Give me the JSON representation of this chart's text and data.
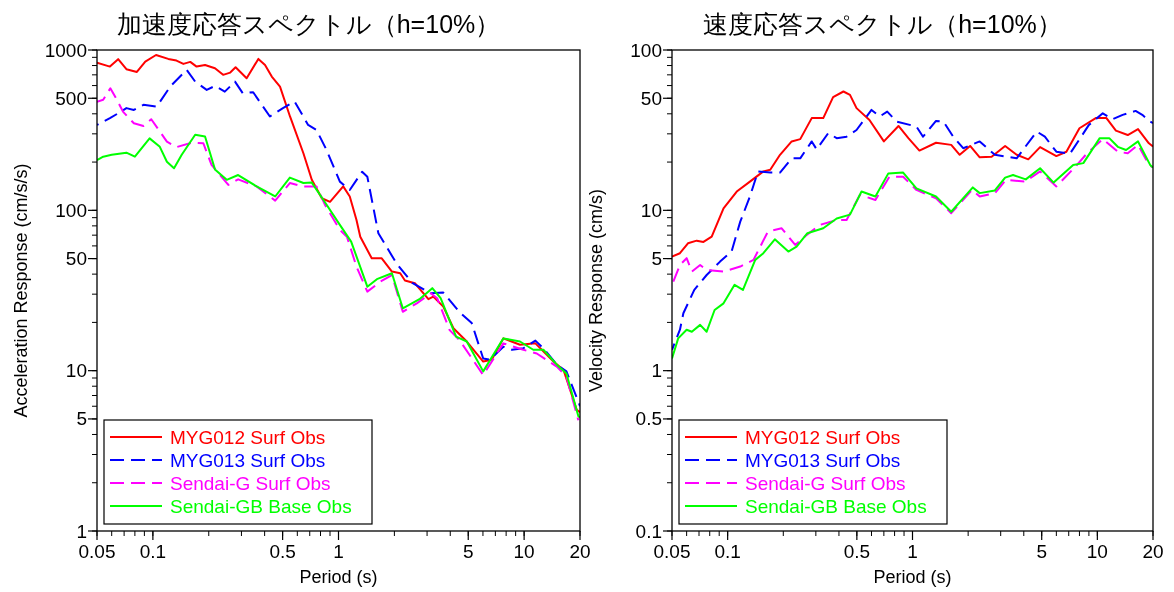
{
  "chart_data": [
    {
      "type": "line",
      "title": "加速度応答スペクトル（h=10%）",
      "xlabel": "Period (s)",
      "ylabel": "Acceleration Response (cm/s/s)",
      "log": "xy",
      "xlim": [
        0.05,
        20
      ],
      "ylim": [
        1,
        1000
      ],
      "xticks": [
        0.05,
        0.1,
        0.5,
        1,
        5,
        10,
        20
      ],
      "yticks": [
        1,
        5,
        10,
        50,
        100,
        500,
        1000
      ],
      "legend": "bottom left",
      "series": [
        {
          "name": "MYG012 Surf Obs",
          "color": "#ff0000",
          "line_style": "solid",
          "x": [
            0.05,
            0.0587,
            0.065,
            0.072,
            0.082,
            0.091,
            0.104,
            0.121,
            0.134,
            0.146,
            0.159,
            0.172,
            0.191,
            0.216,
            0.239,
            0.261,
            0.279,
            0.32,
            0.37,
            0.402,
            0.437,
            0.484,
            0.548,
            0.647,
            0.718,
            0.813,
            0.9,
            1.06,
            1.15,
            1.25,
            1.31,
            1.51,
            1.71,
            1.94,
            2.15,
            2.28,
            2.58,
            3.05,
            3.24,
            3.67,
            4.16,
            4.91,
            6.02,
            6.69,
            7.73,
            9.5,
            11.5,
            14.4,
            16.3,
            19.2,
            20
          ],
          "values": [
            834,
            788,
            877,
            759,
            730,
            847,
            931,
            880,
            859,
            819,
            843,
            788,
            807,
            770,
            700,
            723,
            781,
            667,
            880,
            807,
            683,
            591,
            385,
            227,
            155,
            119,
            113,
            141,
            122,
            87,
            68.5,
            50.2,
            50.2,
            41.5,
            40.5,
            36.5,
            35.1,
            27.9,
            29,
            25.1,
            18.4,
            15.2,
            11.4,
            11.7,
            15.9,
            14.5,
            14.8,
            11.4,
            10.1,
            5.7,
            5.5
          ]
        },
        {
          "name": "MYG013 Surf Obs",
          "color": "#0000ff",
          "line_style": "dashed",
          "x": [
            0.05,
            0.0587,
            0.066,
            0.072,
            0.079,
            0.089,
            0.105,
            0.124,
            0.152,
            0.169,
            0.195,
            0.216,
            0.244,
            0.277,
            0.305,
            0.347,
            0.427,
            0.502,
            0.58,
            0.686,
            0.761,
            0.862,
            1.017,
            1.15,
            1.34,
            1.43,
            1.64,
            2.05,
            2.19,
            2.51,
            3.14,
            3.67,
            4.47,
            5.22,
            6.02,
            6.55,
            7.73,
            8.6,
            9.9,
            11.5,
            12.7,
            15,
            16.9,
            19.7,
            20
          ],
          "values": [
            341,
            376,
            407,
            434,
            423,
            455,
            444,
            591,
            752,
            635,
            564,
            597,
            550,
            635,
            537,
            545,
            385,
            434,
            477,
            341,
            317,
            238,
            151,
            134,
            174,
            162,
            71.9,
            46.8,
            42.5,
            35.1,
            30.4,
            30.7,
            23.3,
            19.8,
            11.9,
            11.7,
            14.1,
            13.5,
            13.8,
            15.4,
            13.8,
            10.9,
            9.9,
            6.3,
            6
          ]
        },
        {
          "name": "Sendai-G Surf Obs",
          "color": "#ff00ff",
          "line_style": "dashed",
          "x": [
            0.05,
            0.054,
            0.059,
            0.064,
            0.069,
            0.079,
            0.089,
            0.098,
            0.119,
            0.134,
            0.162,
            0.187,
            0.207,
            0.255,
            0.288,
            0.362,
            0.456,
            0.547,
            0.647,
            0.761,
            0.847,
            1.017,
            1.11,
            1.25,
            1.43,
            1.68,
            1.94,
            2.22,
            2.64,
            3.14,
            3.4,
            3.97,
            4.47,
            6.02,
            7.73,
            9.9,
            11.7,
            15,
            16.9,
            19.6
          ],
          "values": [
            476,
            489,
            577,
            489,
            413,
            349,
            336,
            370,
            268,
            248,
            264,
            262,
            192,
            144,
            156,
            141,
            115,
            148,
            141,
            141,
            108,
            75.5,
            68.5,
            44.6,
            31.1,
            35.9,
            39.5,
            23.3,
            26.3,
            30.4,
            28.3,
            17.9,
            15.6,
            9.4,
            14.8,
            13.5,
            12.8,
            10.6,
            9.2,
            4.9
          ]
        },
        {
          "name": "Sendai-GB Base Obs",
          "color": "#00ff00",
          "line_style": "solid",
          "x": [
            0.05,
            0.054,
            0.06,
            0.072,
            0.08,
            0.096,
            0.109,
            0.119,
            0.13,
            0.143,
            0.169,
            0.191,
            0.216,
            0.25,
            0.288,
            0.362,
            0.456,
            0.547,
            0.647,
            0.718,
            0.83,
            1.017,
            1.17,
            1.43,
            1.61,
            1.94,
            2.22,
            2.73,
            3.2,
            3.55,
            4.3,
            4.91,
            6.02,
            7.73,
            9.5,
            11.2,
            12.7,
            15,
            16.9,
            19.6,
            20
          ],
          "values": [
            206,
            216,
            222,
            229,
            216,
            281,
            249,
            201,
            183,
            222,
            296,
            289,
            180,
            155,
            166,
            141,
            122,
            160,
            148,
            149,
            116,
            81.1,
            63.8,
            33.4,
            37.2,
            40.5,
            24.5,
            27.9,
            32.7,
            28.3,
            16.3,
            15.2,
            9.9,
            15.9,
            15.2,
            13.5,
            13.5,
            10.9,
            9.6,
            5.2,
            5.1
          ]
        }
      ]
    },
    {
      "type": "line",
      "title": "速度応答スペクトル（h=10%）",
      "xlabel": "Period (s)",
      "ylabel": "Velocity Response (cm/s)",
      "log": "xy",
      "xlim": [
        0.05,
        20
      ],
      "ylim": [
        0.1,
        100
      ],
      "xticks": [
        0.05,
        0.1,
        0.5,
        1,
        5,
        10,
        20
      ],
      "yticks": [
        0.1,
        0.5,
        1,
        5,
        10,
        50,
        100
      ],
      "legend": "bottom left",
      "series": [
        {
          "name": "MYG012 Surf Obs",
          "color": "#ff0000",
          "line_style": "solid",
          "x": [
            0.05,
            0.0552,
            0.061,
            0.068,
            0.074,
            0.082,
            0.095,
            0.112,
            0.132,
            0.156,
            0.17,
            0.192,
            0.222,
            0.247,
            0.285,
            0.329,
            0.372,
            0.423,
            0.459,
            0.498,
            0.585,
            0.7,
            0.84,
            0.95,
            1.09,
            1.34,
            1.62,
            1.8,
            2.05,
            2.31,
            2.68,
            3.17,
            3.66,
            4.23,
            4.9,
            6,
            6.8,
            8,
            9.8,
            11.2,
            12.6,
            14.6,
            16.6,
            19,
            20
          ],
          "values": [
            5.14,
            5.4,
            6.23,
            6.47,
            6.35,
            6.85,
            10.3,
            13.1,
            15.1,
            17.5,
            17.9,
            22.2,
            26.9,
            27.8,
            37.6,
            37.6,
            50.8,
            55.1,
            52.5,
            43.4,
            36.6,
            26.9,
            33.6,
            28.2,
            23.6,
            26.4,
            25.6,
            22.2,
            25.2,
            21.4,
            21.6,
            25.2,
            22.2,
            20.8,
            24.8,
            21.8,
            23.2,
            32.5,
            37.6,
            37.6,
            31.4,
            29.5,
            32.1,
            26.2,
            25
          ]
        },
        {
          "name": "MYG013 Surf Obs",
          "color": "#0000ff",
          "line_style": "dashed",
          "x": [
            0.05,
            0.0552,
            0.0576,
            0.066,
            0.077,
            0.091,
            0.105,
            0.117,
            0.132,
            0.146,
            0.17,
            0.192,
            0.222,
            0.247,
            0.285,
            0.303,
            0.35,
            0.389,
            0.44,
            0.498,
            0.6,
            0.665,
            0.73,
            0.82,
            1.05,
            1.14,
            1.34,
            1.47,
            1.66,
            1.88,
            2.31,
            2.79,
            3.66,
            4.7,
            5.2,
            6,
            7.1,
            9,
            10.7,
            12.1,
            13.7,
            16.1,
            17.5,
            19.3,
            20
          ],
          "values": [
            1.35,
            1.8,
            2.28,
            3.19,
            3.95,
            4.79,
            5.53,
            8.5,
            12.2,
            17.5,
            17.2,
            17.2,
            21.1,
            21.1,
            26.9,
            24,
            30.3,
            28.2,
            28.8,
            31.7,
            42.3,
            38.5,
            41.3,
            35.8,
            33.3,
            28.8,
            36.1,
            35.8,
            28.8,
            24.4,
            26.9,
            22.2,
            21.1,
            31,
            28.8,
            23.2,
            22.5,
            34.1,
            40.3,
            37,
            39.4,
            41.7,
            39.4,
            35.8,
            35
          ]
        },
        {
          "name": "Sendai-G Surf Obs",
          "color": "#ff00ff",
          "line_style": "dashed",
          "x": [
            0.05,
            0.0552,
            0.06,
            0.064,
            0.071,
            0.077,
            0.095,
            0.117,
            0.138,
            0.165,
            0.196,
            0.232,
            0.268,
            0.315,
            0.389,
            0.44,
            0.52,
            0.63,
            0.75,
            0.89,
            1.05,
            1.34,
            1.62,
            2.1,
            2.31,
            2.79,
            3.2,
            4.06,
            4.9,
            6,
            7.6,
            8.8,
            10.7,
            12.9,
            14.6,
            16.6,
            19,
            20
          ],
          "values": [
            3.43,
            4.56,
            5.03,
            4.15,
            4.56,
            4.25,
            4.15,
            4.46,
            4.91,
            7.36,
            7.73,
            6.08,
            7.03,
            8.11,
            8.71,
            8.71,
            12.5,
            11.6,
            16.2,
            16.2,
            13.4,
            11.9,
            9.6,
            13.4,
            12.2,
            12.8,
            15.5,
            15.1,
            17.5,
            14.1,
            18.7,
            22.7,
            27.8,
            23.2,
            22.7,
            25.6,
            19.2,
            18.5
          ]
        },
        {
          "name": "Sendai-GB Base Obs",
          "color": "#00ff00",
          "line_style": "solid",
          "x": [
            0.05,
            0.054,
            0.06,
            0.064,
            0.071,
            0.077,
            0.085,
            0.095,
            0.109,
            0.121,
            0.141,
            0.156,
            0.18,
            0.213,
            0.236,
            0.27,
            0.329,
            0.389,
            0.459,
            0.53,
            0.63,
            0.74,
            0.89,
            1.05,
            1.34,
            1.62,
            2.12,
            2.31,
            2.79,
            3.17,
            3.5,
            4.1,
            4.9,
            5.8,
            7.4,
            8.4,
            10.3,
            11.6,
            12.9,
            14.3,
            16.6,
            19.3,
            20
          ],
          "values": [
            1.19,
            1.59,
            1.8,
            1.75,
            1.93,
            1.75,
            2.39,
            2.63,
            3.43,
            3.19,
            4.91,
            5.4,
            6.6,
            5.53,
            5.94,
            7.2,
            7.73,
            8.9,
            9.4,
            13.1,
            12.2,
            17,
            17.2,
            13.7,
            12.2,
            9.8,
            13.9,
            12.8,
            13.3,
            16,
            16.6,
            15.6,
            18.3,
            14.9,
            19.2,
            19.7,
            28.2,
            28.2,
            24.9,
            23.8,
            26.9,
            19.2,
            18.5
          ]
        }
      ]
    }
  ]
}
